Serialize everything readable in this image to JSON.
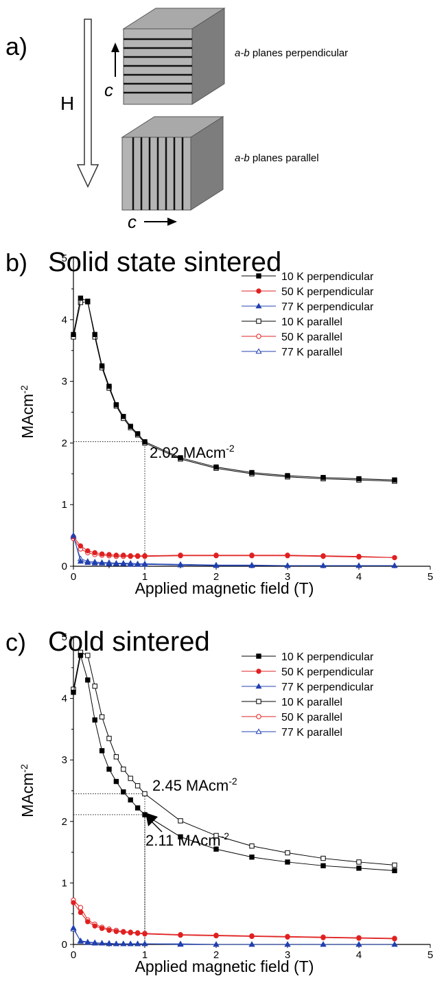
{
  "panel_a": {
    "letter": "a)",
    "field_label": "H",
    "top_axis_label": "c",
    "bottom_axis_label": "c",
    "top_caption_italic": "a-b",
    "top_caption_rest": " planes perpendicular",
    "bottom_caption_italic": "a-b",
    "bottom_caption_rest": " planes parallel"
  },
  "chart_data": [
    {
      "type": "line",
      "panel_letter": "b)",
      "title": "Solid state sintered",
      "xlabel": "Applied magnetic field (T)",
      "ylabel_base": "MAcm",
      "ylabel_sup": "-2",
      "xlim": [
        0,
        5
      ],
      "ylim": [
        0,
        5
      ],
      "xticks": [
        "0",
        "1",
        "2",
        "3",
        "4",
        "5"
      ],
      "yticks": [
        "0",
        "1",
        "2",
        "3",
        "4",
        "5"
      ],
      "legend_position": "top-right",
      "series": [
        {
          "name": "10 K perpendicular",
          "color": "#000000",
          "marker": "square",
          "filled": true,
          "x": [
            0,
            0.1,
            0.2,
            0.3,
            0.4,
            0.5,
            0.6,
            0.7,
            0.8,
            0.9,
            1.0,
            1.5,
            2.0,
            2.5,
            3.0,
            3.5,
            4.0,
            4.5
          ],
          "y": [
            3.76,
            4.35,
            4.3,
            3.76,
            3.25,
            2.92,
            2.62,
            2.43,
            2.27,
            2.15,
            2.02,
            1.76,
            1.61,
            1.52,
            1.47,
            1.44,
            1.42,
            1.4
          ]
        },
        {
          "name": "50 K perpendicular",
          "color": "#e02020",
          "marker": "circle",
          "filled": true,
          "x": [
            0,
            0.1,
            0.2,
            0.3,
            0.4,
            0.5,
            0.6,
            0.7,
            0.8,
            0.9,
            1.0,
            1.5,
            2.0,
            2.5,
            3.0,
            3.5,
            4.0,
            4.5
          ],
          "y": [
            0.48,
            0.33,
            0.25,
            0.22,
            0.2,
            0.19,
            0.18,
            0.18,
            0.17,
            0.17,
            0.17,
            0.18,
            0.18,
            0.18,
            0.18,
            0.17,
            0.16,
            0.14
          ]
        },
        {
          "name": "77 K perpendicular",
          "color": "#2040b0",
          "marker": "triangle",
          "filled": true,
          "x": [
            0,
            0.1,
            0.2,
            0.3,
            0.4,
            0.5,
            0.6,
            0.7,
            0.8,
            0.9,
            1.0,
            1.5,
            2.0,
            2.5,
            3.0,
            3.5,
            4.0,
            4.5
          ],
          "y": [
            0.5,
            0.08,
            0.06,
            0.05,
            0.05,
            0.04,
            0.04,
            0.04,
            0.03,
            0.03,
            0.03,
            0.02,
            0.01,
            0.01,
            0.01,
            0.01,
            0.01,
            0.01
          ]
        },
        {
          "name": "10 K parallel",
          "color": "#000000",
          "marker": "square",
          "filled": false,
          "x": [
            0,
            0.1,
            0.2,
            0.3,
            0.4,
            0.5,
            0.6,
            0.7,
            0.8,
            0.9,
            1.0,
            1.5,
            2.0,
            2.5,
            3.0,
            3.5,
            4.0,
            4.5
          ],
          "y": [
            3.72,
            4.28,
            4.29,
            3.72,
            3.22,
            2.89,
            2.6,
            2.4,
            2.25,
            2.13,
            2.0,
            1.74,
            1.59,
            1.5,
            1.45,
            1.42,
            1.4,
            1.38
          ]
        },
        {
          "name": "50 K parallel",
          "color": "#e02020",
          "marker": "circle",
          "filled": false,
          "x": [
            0,
            0.1,
            0.2,
            0.3,
            0.4,
            0.5,
            0.6,
            0.7,
            0.8,
            0.9,
            1.0,
            1.5,
            2.0,
            2.5,
            3.0,
            3.5,
            4.0,
            4.5
          ],
          "y": [
            0.45,
            0.28,
            0.22,
            0.19,
            0.18,
            0.17,
            0.16,
            0.16,
            0.16,
            0.16,
            0.16,
            0.17,
            0.17,
            0.17,
            0.17,
            0.16,
            0.15,
            0.14
          ]
        },
        {
          "name": "77 K parallel",
          "color": "#2040b0",
          "marker": "triangle",
          "filled": false,
          "x": [
            0,
            0.1,
            0.2,
            0.3,
            0.4,
            0.5,
            0.6,
            0.7,
            0.8,
            0.9,
            1.0,
            1.5,
            2.0,
            2.5,
            3.0,
            3.5,
            4.0,
            4.5
          ],
          "y": [
            0.48,
            0.12,
            0.08,
            0.07,
            0.06,
            0.06,
            0.05,
            0.05,
            0.05,
            0.04,
            0.04,
            0.03,
            0.02,
            0.02,
            0.01,
            0.01,
            0.01,
            0.01
          ]
        }
      ],
      "annotations": [
        {
          "x": 1.0,
          "y": 2.02,
          "text": "2.02 MAcm",
          "sup": "-2"
        }
      ]
    },
    {
      "type": "line",
      "panel_letter": "c)",
      "title": "Cold sintered",
      "xlabel": "Applied magnetic field (T)",
      "ylabel_base": "MAcm",
      "ylabel_sup": "-2",
      "xlim": [
        0,
        5
      ],
      "ylim": [
        0,
        5
      ],
      "xticks": [
        "0",
        "1",
        "2",
        "3",
        "4",
        "5"
      ],
      "yticks": [
        "0",
        "1",
        "2",
        "3",
        "4",
        "5"
      ],
      "legend_position": "top-right",
      "series": [
        {
          "name": "10 K perpendicular",
          "color": "#000000",
          "marker": "square",
          "filled": true,
          "x": [
            0,
            0.1,
            0.2,
            0.3,
            0.4,
            0.5,
            0.6,
            0.7,
            0.8,
            0.9,
            1.0,
            1.5,
            2.0,
            2.5,
            3.0,
            3.5,
            4.0,
            4.5
          ],
          "y": [
            4.1,
            4.7,
            4.3,
            3.65,
            3.15,
            2.85,
            2.65,
            2.48,
            2.35,
            2.22,
            2.11,
            1.75,
            1.55,
            1.42,
            1.34,
            1.28,
            1.24,
            1.2
          ]
        },
        {
          "name": "50 K perpendicular",
          "color": "#e02020",
          "marker": "circle",
          "filled": true,
          "x": [
            0,
            0.1,
            0.2,
            0.3,
            0.4,
            0.5,
            0.6,
            0.7,
            0.8,
            0.9,
            1.0,
            1.5,
            2.0,
            2.5,
            3.0,
            3.5,
            4.0,
            4.5
          ],
          "y": [
            0.68,
            0.52,
            0.37,
            0.3,
            0.26,
            0.23,
            0.21,
            0.2,
            0.19,
            0.18,
            0.17,
            0.15,
            0.14,
            0.13,
            0.12,
            0.11,
            0.1,
            0.09
          ]
        },
        {
          "name": "77 K perpendicular",
          "color": "#2040b0",
          "marker": "triangle",
          "filled": true,
          "x": [
            0,
            0.1,
            0.2,
            0.3,
            0.4,
            0.5,
            0.6,
            0.7,
            0.8,
            0.9,
            1.0,
            1.5,
            2.0,
            2.5,
            3.0,
            3.5,
            4.0,
            4.5
          ],
          "y": [
            0.27,
            0.05,
            0.03,
            0.02,
            0.02,
            0.01,
            0.01,
            0.01,
            0.01,
            0.01,
            0.01,
            0.0,
            0.0,
            0.0,
            0.0,
            0.0,
            0.0,
            0.0
          ]
        },
        {
          "name": "10 K parallel",
          "color": "#000000",
          "marker": "square",
          "filled": false,
          "x": [
            0,
            0.1,
            0.2,
            0.3,
            0.4,
            0.5,
            0.6,
            0.7,
            0.8,
            0.9,
            1.0,
            1.5,
            2.0,
            2.5,
            3.0,
            3.5,
            4.0,
            4.5
          ],
          "y": [
            4.15,
            4.75,
            4.7,
            4.2,
            3.7,
            3.35,
            3.05,
            2.85,
            2.7,
            2.58,
            2.45,
            2.01,
            1.77,
            1.6,
            1.49,
            1.4,
            1.34,
            1.29
          ]
        },
        {
          "name": "50 K parallel",
          "color": "#e02020",
          "marker": "circle",
          "filled": false,
          "x": [
            0,
            0.1,
            0.2,
            0.3,
            0.4,
            0.5,
            0.6,
            0.7,
            0.8,
            0.9,
            1.0,
            1.5,
            2.0,
            2.5,
            3.0,
            3.5,
            4.0,
            4.5
          ],
          "y": [
            0.72,
            0.6,
            0.4,
            0.33,
            0.28,
            0.25,
            0.23,
            0.21,
            0.2,
            0.19,
            0.18,
            0.16,
            0.15,
            0.14,
            0.13,
            0.12,
            0.11,
            0.1
          ]
        },
        {
          "name": "77 K parallel",
          "color": "#2040b0",
          "marker": "triangle",
          "filled": false,
          "x": [
            0,
            0.1,
            0.2,
            0.3,
            0.4,
            0.5,
            0.6,
            0.7,
            0.8,
            0.9,
            1.0,
            1.5,
            2.0,
            2.5,
            3.0,
            3.5,
            4.0,
            4.5
          ],
          "y": [
            0.25,
            0.06,
            0.04,
            0.03,
            0.02,
            0.02,
            0.01,
            0.01,
            0.01,
            0.01,
            0.01,
            0.01,
            0.0,
            0.0,
            0.0,
            0.0,
            0.0,
            0.0
          ]
        }
      ],
      "annotations": [
        {
          "x": 1.0,
          "y": 2.45,
          "text": "2.45 MAcm",
          "sup": "-2"
        },
        {
          "x": 1.0,
          "y": 2.11,
          "text": "2.11 MAcm",
          "sup": "-2"
        }
      ]
    }
  ]
}
